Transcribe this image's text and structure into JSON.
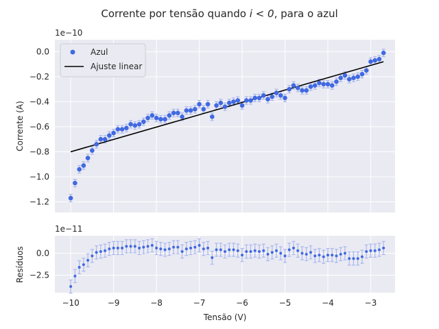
{
  "figure": {
    "title_prefix": "Corrente por tensão quando ",
    "title_math": "i < 0",
    "title_suffix": ", para o azul",
    "xlabel": "Tensão (V)"
  },
  "colors": {
    "background": "#eaeaf2",
    "grid": "#ffffff",
    "points": "#4169e1",
    "errorbars": "#a9b8ee",
    "fit": "#000000"
  },
  "chart_data": [
    {
      "type": "scatter",
      "name": "main",
      "ylabel": "Corrente (A)",
      "offset_label": "1e−10",
      "xlim": [
        -10.37,
        -2.43
      ],
      "ylim": [
        -1.285,
        0.095
      ],
      "x_ticks": [
        -10,
        -9,
        -8,
        -7,
        -6,
        -5,
        -4,
        -3
      ],
      "x_tick_labels": [
        "−10",
        "−9",
        "−8",
        "−7",
        "−6",
        "−5",
        "−4",
        "−3"
      ],
      "y_ticks": [
        0.0,
        -0.2,
        -0.4,
        -0.6,
        -0.8,
        -1.0,
        -1.2
      ],
      "y_tick_labels": [
        "0.0",
        "−0.2",
        "−0.4",
        "−0.6",
        "−0.8",
        "−1.0",
        "−1.2"
      ],
      "grid": true,
      "legend_position": "top-left",
      "legend": [
        "Azul",
        "Ajuste linear"
      ],
      "error": 0.03,
      "x": [
        -10.0,
        -9.9,
        -9.8,
        -9.7,
        -9.6,
        -9.5,
        -9.4,
        -9.3,
        -9.2,
        -9.1,
        -9.0,
        -8.9,
        -8.8,
        -8.7,
        -8.6,
        -8.5,
        -8.4,
        -8.3,
        -8.2,
        -8.1,
        -8.0,
        -7.9,
        -7.8,
        -7.7,
        -7.6,
        -7.5,
        -7.4,
        -7.3,
        -7.2,
        -7.1,
        -7.0,
        -6.9,
        -6.8,
        -6.7,
        -6.6,
        -6.5,
        -6.4,
        -6.3,
        -6.2,
        -6.1,
        -6.0,
        -5.9,
        -5.8,
        -5.7,
        -5.6,
        -5.5,
        -5.4,
        -5.3,
        -5.2,
        -5.1,
        -5.0,
        -4.9,
        -4.8,
        -4.7,
        -4.6,
        -4.5,
        -4.4,
        -4.3,
        -4.2,
        -4.1,
        -4.0,
        -3.9,
        -3.8,
        -3.7,
        -3.6,
        -3.5,
        -3.4,
        -3.3,
        -3.2,
        -3.1,
        -3.0,
        -2.9,
        -2.8,
        -2.7
      ],
      "y": [
        -1.17,
        -1.05,
        -0.94,
        -0.91,
        -0.85,
        -0.79,
        -0.74,
        -0.7,
        -0.7,
        -0.67,
        -0.65,
        -0.62,
        -0.62,
        -0.61,
        -0.58,
        -0.59,
        -0.58,
        -0.56,
        -0.53,
        -0.51,
        -0.53,
        -0.54,
        -0.54,
        -0.51,
        -0.49,
        -0.49,
        -0.52,
        -0.47,
        -0.47,
        -0.46,
        -0.42,
        -0.46,
        -0.42,
        -0.52,
        -0.43,
        -0.41,
        -0.44,
        -0.41,
        -0.4,
        -0.39,
        -0.43,
        -0.39,
        -0.39,
        -0.37,
        -0.37,
        -0.35,
        -0.38,
        -0.36,
        -0.33,
        -0.35,
        -0.37,
        -0.3,
        -0.27,
        -0.29,
        -0.31,
        -0.31,
        -0.28,
        -0.27,
        -0.25,
        -0.26,
        -0.26,
        -0.27,
        -0.24,
        -0.21,
        -0.19,
        -0.22,
        -0.21,
        -0.2,
        -0.18,
        -0.15,
        -0.08,
        -0.07,
        -0.06,
        -0.01
      ],
      "fit_x": [
        -10.0,
        -2.7
      ],
      "fit_y": [
        -0.8,
        -0.08
      ]
    },
    {
      "type": "scatter",
      "name": "residuals",
      "ylabel": "Resíduos",
      "offset_label": "1e−11",
      "xlim": [
        -10.37,
        -2.43
      ],
      "ylim": [
        -4.5,
        2.0
      ],
      "y_ticks": [
        0.0,
        -2.5
      ],
      "y_tick_labels": [
        "0.0",
        "−2.5"
      ],
      "grid": true,
      "error": 0.75,
      "y": [
        -3.8,
        -2.6,
        -1.6,
        -1.3,
        -0.8,
        -0.3,
        0.1,
        0.2,
        0.3,
        0.5,
        0.6,
        0.6,
        0.6,
        0.8,
        0.8,
        0.8,
        0.6,
        0.7,
        0.8,
        0.9,
        0.6,
        0.5,
        0.4,
        0.5,
        0.7,
        0.7,
        0.2,
        0.5,
        0.6,
        0.7,
        0.9,
        0.5,
        0.6,
        -0.5,
        0.4,
        0.4,
        0.2,
        0.4,
        0.4,
        0.3,
        -0.2,
        0.2,
        0.2,
        0.3,
        0.2,
        0.3,
        -0.1,
        0.1,
        0.3,
        0.0,
        -0.3,
        0.4,
        0.6,
        0.3,
        0.0,
        -0.1,
        0.1,
        -0.3,
        -0.2,
        -0.4,
        -0.2,
        -0.2,
        -0.3,
        -0.1,
        0.0,
        -0.6,
        -0.6,
        -0.6,
        -0.4,
        0.2,
        0.3,
        0.3,
        0.4,
        0.6
      ]
    }
  ]
}
